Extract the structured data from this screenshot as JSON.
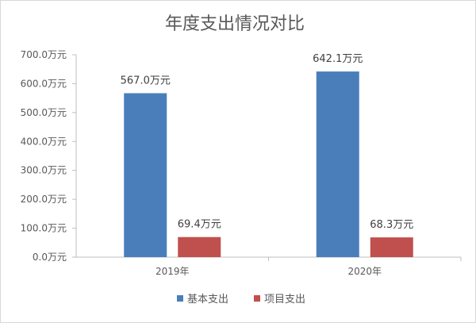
{
  "chart_data": {
    "type": "bar",
    "title": "年度支出情况对比",
    "categories": [
      "2019年",
      "2020年"
    ],
    "series": [
      {
        "name": "基本支出",
        "values": [
          567.0,
          642.1
        ],
        "color": "#4a7ebb"
      },
      {
        "name": "项目支出",
        "values": [
          69.4,
          68.3
        ],
        "color": "#c0504d"
      }
    ],
    "data_labels": [
      [
        "567.0万元",
        "642.1万元"
      ],
      [
        "69.4万元",
        "68.3万元"
      ]
    ],
    "ylim": [
      0,
      700
    ],
    "yticks": [
      0,
      100,
      200,
      300,
      400,
      500,
      600,
      700
    ],
    "ytick_labels": [
      "0.0万元",
      "100.0万元",
      "200.0万元",
      "300.0万元",
      "400.0万元",
      "500.0万元",
      "600.0万元",
      "700.0万元"
    ],
    "grid": false,
    "legend_position": "bottom"
  }
}
